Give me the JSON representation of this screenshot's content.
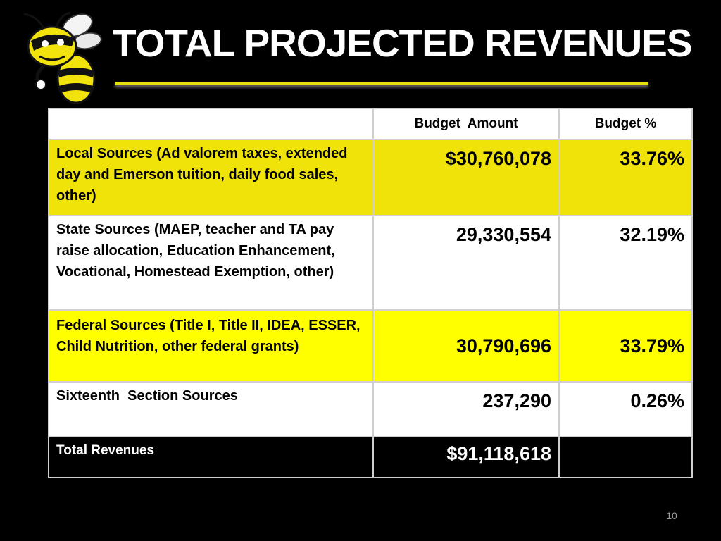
{
  "slide": {
    "title": "TOTAL PROJECTED REVENUES",
    "page_number": "10",
    "accent_color": "#e2e20f",
    "logo_icon": "yellow-jacket-mascot-icon"
  },
  "table": {
    "headers": [
      "",
      "Budget  Amount",
      "Budget %"
    ],
    "rows": [
      {
        "label": "Local Sources (Ad valorem taxes, extended day and Emerson tuition, daily food sales, other)",
        "amount": "$30,760,078",
        "percent": "33.76%",
        "color": "#f0e30a"
      },
      {
        "label": "State Sources (MAEP, teacher and TA pay raise allocation, Education Enhancement, Vocational, Homestead Exemption, other)",
        "amount": "29,330,554",
        "percent": "32.19%",
        "color": "#ffffff"
      },
      {
        "label": "Federal Sources (Title I, Title II, IDEA, ESSER, Child Nutrition, other federal grants)",
        "amount": "30,790,696",
        "percent": "33.79%",
        "color": "#ffff00"
      },
      {
        "label": "Sixteenth  Section Sources",
        "amount": "237,290",
        "percent": "0.26%",
        "color": "#ffffff"
      }
    ],
    "total": {
      "label": "Total Revenues",
      "amount": "$91,118,618",
      "percent": ""
    }
  }
}
